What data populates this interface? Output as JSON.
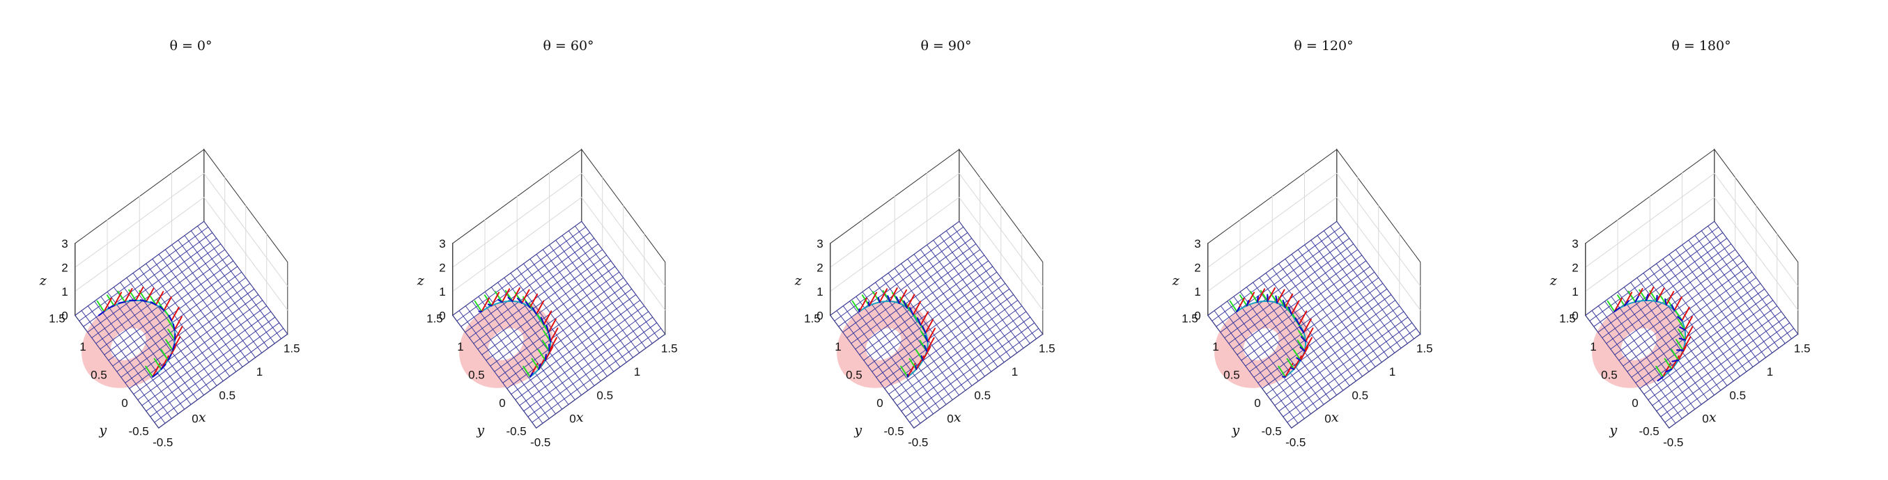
{
  "colors": {
    "mesh": "#3a3aa0",
    "disk": "#f4a7a7",
    "curve": "#1aa0c0",
    "frame_x": "#e01010",
    "frame_y": "#22dd22",
    "frame_z": "#1010c8",
    "box": "#333333",
    "grid": "#d8d8d8"
  },
  "chart_data": [
    {
      "type": "surface",
      "title": "θ = 0°",
      "xlabel": "x",
      "ylabel": "y",
      "zlabel": "z",
      "xticks": [
        "-0.5",
        "0",
        "0.5",
        "1",
        "1.5"
      ],
      "yticks": [
        "-0.5",
        "0",
        "0.5",
        "1",
        "1.5"
      ],
      "zticks": [
        "0",
        "1",
        "2",
        "3"
      ],
      "xlim": [
        -0.5,
        1.5
      ],
      "ylim": [
        -0.5,
        1.5
      ],
      "zlim": [
        0,
        3
      ],
      "theta_deg": 0,
      "grid": true
    },
    {
      "type": "surface",
      "title": "θ = 60°",
      "xlabel": "x",
      "ylabel": "y",
      "zlabel": "z",
      "xticks": [
        "-0.5",
        "0",
        "0.5",
        "1",
        "1.5"
      ],
      "yticks": [
        "-0.5",
        "0",
        "0.5",
        "1",
        "1.5"
      ],
      "zticks": [
        "0",
        "1",
        "2",
        "3"
      ],
      "xlim": [
        -0.5,
        1.5
      ],
      "ylim": [
        -0.5,
        1.5
      ],
      "zlim": [
        0,
        3
      ],
      "theta_deg": 60,
      "grid": true
    },
    {
      "type": "surface",
      "title": "θ = 90°",
      "xlabel": "x",
      "ylabel": "y",
      "zlabel": "z",
      "xticks": [
        "-0.5",
        "0",
        "0.5",
        "1",
        "1.5"
      ],
      "yticks": [
        "-0.5",
        "0",
        "0.5",
        "1",
        "1.5"
      ],
      "zticks": [
        "0",
        "1",
        "2",
        "3"
      ],
      "xlim": [
        -0.5,
        1.5
      ],
      "ylim": [
        -0.5,
        1.5
      ],
      "zlim": [
        0,
        3
      ],
      "theta_deg": 90,
      "grid": true
    },
    {
      "type": "surface",
      "title": "θ = 120°",
      "xlabel": "x",
      "ylabel": "y",
      "zlabel": "z",
      "xticks": [
        "-0.5",
        "0",
        "0.5",
        "1",
        "1.5"
      ],
      "yticks": [
        "-0.5",
        "0",
        "0.5",
        "1",
        "1.5"
      ],
      "zticks": [
        "0",
        "1",
        "2",
        "3"
      ],
      "xlim": [
        -0.5,
        1.5
      ],
      "ylim": [
        -0.5,
        1.5
      ],
      "zlim": [
        0,
        3
      ],
      "theta_deg": 120,
      "grid": true
    },
    {
      "type": "surface",
      "title": "θ = 180°",
      "xlabel": "x",
      "ylabel": "y",
      "zlabel": "z",
      "xticks": [
        "-0.5",
        "0",
        "0.5",
        "1",
        "1.5"
      ],
      "yticks": [
        "-0.5",
        "0",
        "0.5",
        "1",
        "1.5"
      ],
      "zticks": [
        "0",
        "1",
        "2",
        "3"
      ],
      "xlim": [
        -0.5,
        1.5
      ],
      "ylim": [
        -0.5,
        1.5
      ],
      "zlim": [
        0,
        3
      ],
      "theta_deg": 180,
      "grid": true
    }
  ]
}
